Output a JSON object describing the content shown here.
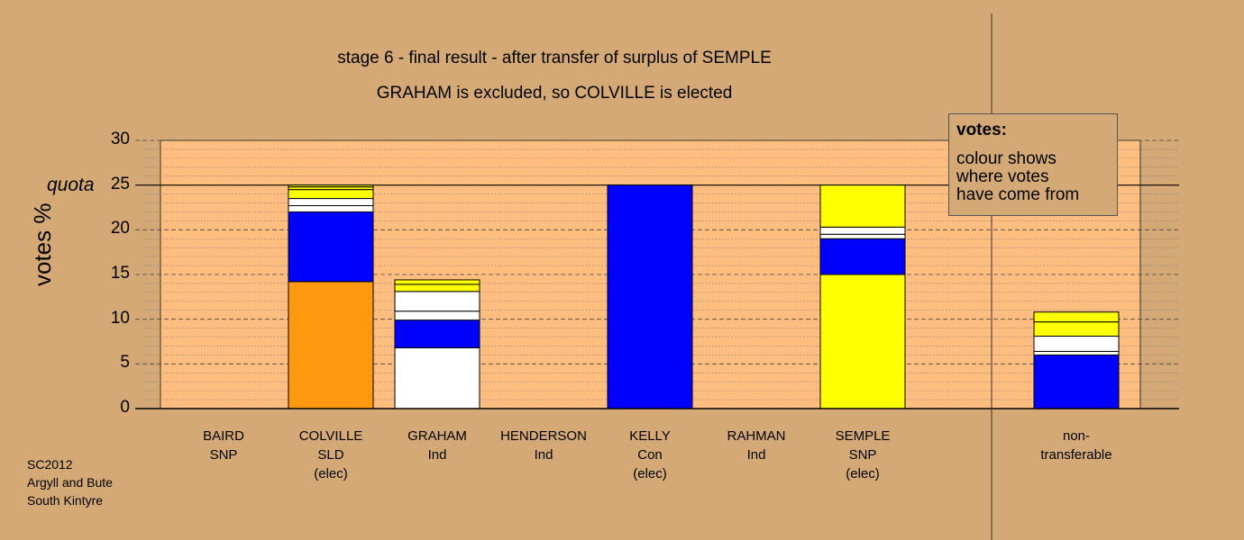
{
  "title_lines": [
    "stage 6 - final result - after transfer of surplus of SEMPLE",
    "GRAHAM is excluded, so COLVILLE is elected"
  ],
  "legend": {
    "heading": "votes:",
    "lines": [
      "colour shows",
      "where votes",
      "have come from"
    ]
  },
  "footer": [
    "SC2012",
    "Argyll and Bute",
    "South Kintyre"
  ],
  "chart_data": {
    "type": "bar",
    "stacked": true,
    "ylabel": "votes %",
    "quota_label": "quota",
    "quota": 25,
    "ylim": [
      0,
      30
    ],
    "yticks": [
      0,
      5,
      10,
      15,
      20,
      25,
      30
    ],
    "grid": true,
    "categories": [
      [
        "BAIRD",
        "SNP"
      ],
      [
        "COLVILLE",
        "SLD",
        "(elec)"
      ],
      [
        "GRAHAM",
        "Ind"
      ],
      [
        "HENDERSON",
        "Ind"
      ],
      [
        "KELLY",
        "Con",
        "(elec)"
      ],
      [
        "RAHMAN",
        "Ind"
      ],
      [
        "SEMPLE",
        "SNP",
        "(elec)"
      ],
      [
        "non-",
        "transferable"
      ]
    ],
    "colors": {
      "orange": "#ff9910",
      "blue": "#0000ff",
      "white": "#ffffff",
      "yellow": "#ffff00",
      "background": "#d4a976",
      "plot_fill": "#ffbd80"
    },
    "bars": [
      [],
      [
        {
          "color": "orange",
          "value": 14.2
        },
        {
          "color": "blue",
          "value": 7.8
        },
        {
          "color": "white",
          "value": 0.7
        },
        {
          "color": "white",
          "value": 0.8
        },
        {
          "color": "yellow",
          "value": 1.0
        },
        {
          "color": "yellow",
          "value": 0.3
        },
        {
          "color": "yellow",
          "value": 0.2
        }
      ],
      [
        {
          "color": "white",
          "value": 6.8
        },
        {
          "color": "blue",
          "value": 3.1
        },
        {
          "color": "white",
          "value": 1.0
        },
        {
          "color": "white",
          "value": 2.2
        },
        {
          "color": "yellow",
          "value": 0.8
        },
        {
          "color": "yellow",
          "value": 0.5
        }
      ],
      [],
      [
        {
          "color": "blue",
          "value": 25.0
        }
      ],
      [],
      [
        {
          "color": "yellow",
          "value": 15.0
        },
        {
          "color": "blue",
          "value": 4.0
        },
        {
          "color": "white",
          "value": 0.5
        },
        {
          "color": "white",
          "value": 0.8
        },
        {
          "color": "yellow",
          "value": 4.7
        }
      ],
      [
        {
          "color": "blue",
          "value": 6.0
        },
        {
          "color": "white",
          "value": 0.4
        },
        {
          "color": "white",
          "value": 1.7
        },
        {
          "color": "yellow",
          "value": 1.6
        },
        {
          "color": "yellow",
          "value": 1.1
        }
      ]
    ]
  }
}
